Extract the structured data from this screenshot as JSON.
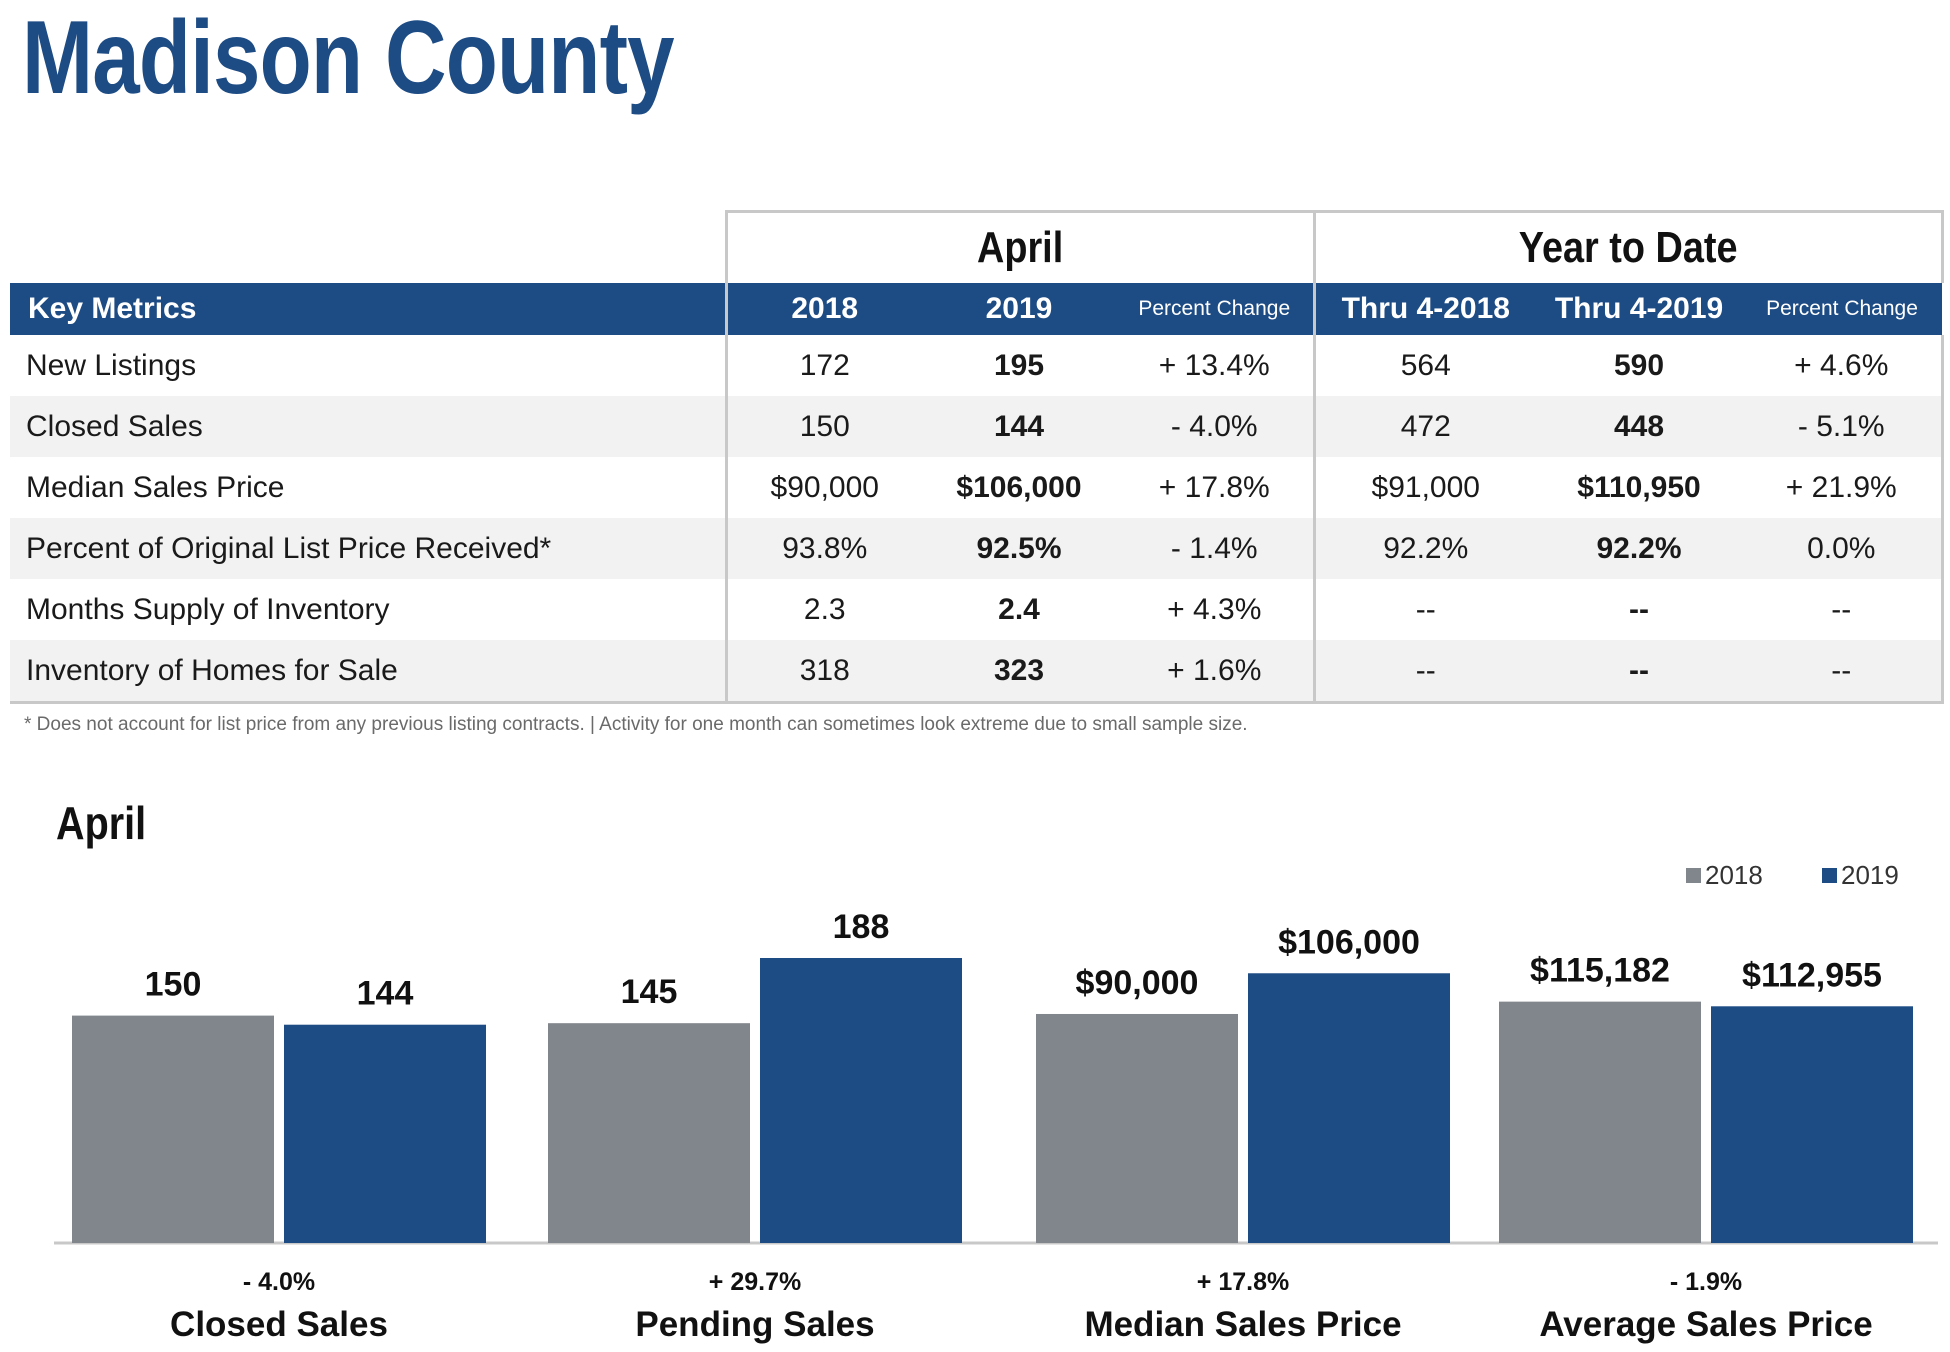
{
  "title": "Madison County",
  "table": {
    "groups": {
      "april": "April",
      "ytd": "Year to Date"
    },
    "headers": [
      "Key Metrics",
      "2018",
      "2019",
      "Percent Change",
      "Thru 4-2018",
      "Thru 4-2019",
      "Percent Change"
    ],
    "rows": [
      {
        "name": "New Listings",
        "v2018": "172",
        "v2019": "195",
        "pct": "+ 13.4%",
        "ytd2018": "564",
        "ytd2019": "590",
        "ytdpct": "+ 4.6%"
      },
      {
        "name": "Closed Sales",
        "v2018": "150",
        "v2019": "144",
        "pct": "- 4.0%",
        "ytd2018": "472",
        "ytd2019": "448",
        "ytdpct": "- 5.1%"
      },
      {
        "name": "Median Sales Price",
        "v2018": "$90,000",
        "v2019": "$106,000",
        "pct": "+ 17.8%",
        "ytd2018": "$91,000",
        "ytd2019": "$110,950",
        "ytdpct": "+ 21.9%"
      },
      {
        "name": "Percent of Original List Price Received*",
        "v2018": "93.8%",
        "v2019": "92.5%",
        "pct": "- 1.4%",
        "ytd2018": "92.2%",
        "ytd2019": "92.2%",
        "ytdpct": "0.0%"
      },
      {
        "name": "Months Supply of Inventory",
        "v2018": "2.3",
        "v2019": "2.4",
        "pct": "+ 4.3%",
        "ytd2018": "--",
        "ytd2019": "--",
        "ytdpct": "--"
      },
      {
        "name": "Inventory of Homes for Sale",
        "v2018": "318",
        "v2019": "323",
        "pct": "+ 1.6%",
        "ytd2018": "--",
        "ytd2019": "--",
        "ytdpct": "--"
      }
    ]
  },
  "footnote": "* Does not account for list price from any previous listing contracts.  |  Activity for one month can sometimes look extreme due to small sample size.",
  "colors": {
    "brand": "#1d4b84",
    "series2018": "#80868b",
    "series2019": "#1d4b84"
  },
  "chart_data": {
    "type": "bar",
    "title": "April",
    "legend": [
      "2018",
      "2019"
    ],
    "legend_position": "top-right",
    "grid": false,
    "groups": [
      {
        "category": "Closed Sales",
        "change": "- 4.0%",
        "v2018": 150,
        "v2019": 144,
        "label2018": "150",
        "label2019": "144",
        "max": 188
      },
      {
        "category": "Pending Sales",
        "change": "+ 29.7%",
        "v2018": 145,
        "v2019": 188,
        "label2018": "145",
        "label2019": "188",
        "max": 188
      },
      {
        "category": "Median Sales Price",
        "change": "+ 17.8%",
        "v2018": 90000,
        "v2019": 106000,
        "label2018": "$90,000",
        "label2019": "$106,000",
        "max": 112000
      },
      {
        "category": "Average Sales Price",
        "change": "- 1.9%",
        "v2018": 115182,
        "v2019": 112955,
        "label2018": "$115,182",
        "label2019": "$112,955",
        "max": 136000
      }
    ]
  }
}
